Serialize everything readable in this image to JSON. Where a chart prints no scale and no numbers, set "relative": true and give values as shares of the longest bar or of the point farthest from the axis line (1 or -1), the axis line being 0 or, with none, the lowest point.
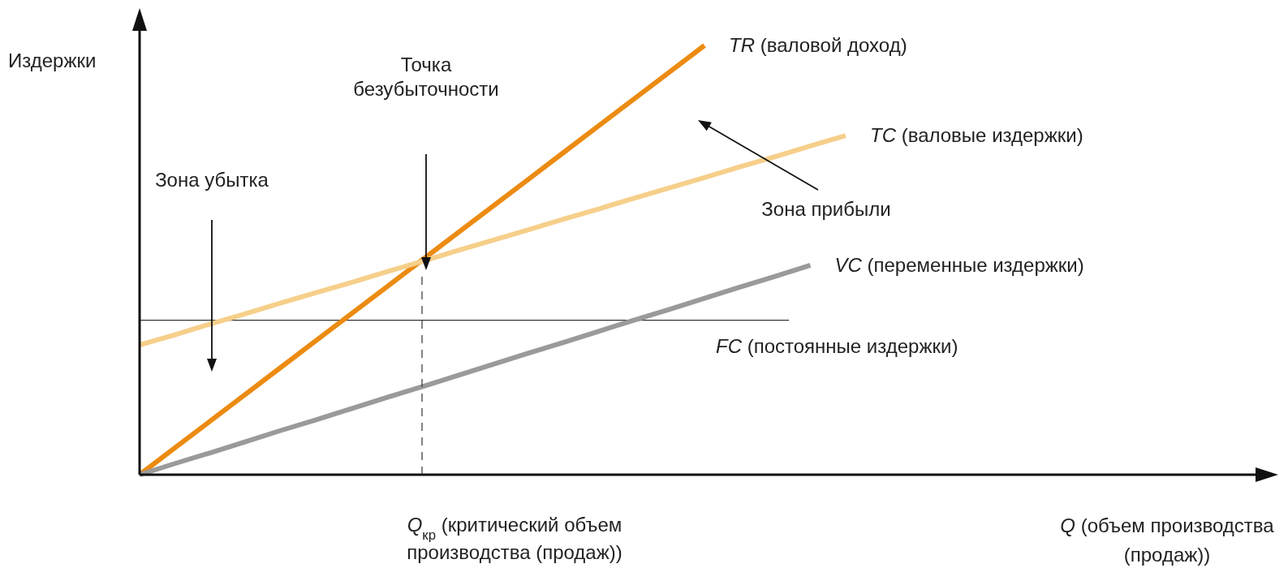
{
  "chart_data": {
    "type": "line",
    "relative": true,
    "ylabel": "Издержки",
    "xlabel": "Q (объем производства\n(продаж))",
    "categories": [
      null,
      null,
      null,
      null,
      null,
      null,
      null,
      null,
      null,
      null,
      null,
      null,
      null,
      null,
      null,
      null,
      null,
      null,
      null,
      null,
      null,
      null,
      null,
      null,
      null,
      null,
      null,
      null,
      null,
      null,
      null,
      null,
      null
    ],
    "series": [
      {
        "name": "TR (валовой доход)",
        "color": "#ec8b12",
        "values": [
          0,
          0.0625,
          0.125,
          0.1875,
          0.25,
          0.3125,
          0.375,
          0.4375,
          0.5,
          0.5625,
          0.625,
          0.6875,
          0.75,
          0.8125,
          0.875,
          0.9375,
          1,
          null,
          null,
          null,
          null,
          null,
          null,
          null,
          null,
          null,
          null,
          null,
          null,
          null,
          null,
          null,
          null
        ]
      },
      {
        "name": "TC (валовые издержки)",
        "color": "#f6cf8a",
        "values": [
          0.302,
          0.326,
          0.351,
          0.375,
          0.4,
          0.424,
          0.448,
          0.473,
          0.497,
          0.522,
          0.546,
          0.57,
          0.595,
          0.619,
          0.644,
          0.668,
          0.692,
          0.717,
          0.741,
          0.766,
          0.79,
          null,
          null,
          null,
          null,
          null,
          null,
          null,
          null,
          null,
          null,
          null,
          null
        ]
      },
      {
        "name": "VC (переменные издержки)",
        "color": "#9a9a9a",
        "values": [
          0,
          0.026,
          0.051,
          0.077,
          0.103,
          0.128,
          0.154,
          0.18,
          0.205,
          0.231,
          0.257,
          0.283,
          0.308,
          0.334,
          0.36,
          0.385,
          0.411,
          0.437,
          0.462,
          0.488,
          null,
          null,
          null,
          null,
          null,
          null,
          null,
          null,
          null,
          null,
          null,
          null,
          null
        ]
      }
    ],
    "ref_lines": [
      {
        "axis": "y",
        "value": 0.36,
        "label": "FC (постоянные издержки)",
        "color": "#333333",
        "line_style": "solid"
      }
    ],
    "annotations": [
      "Зона убытка",
      "Точка\nбезубыточности",
      "Зона прибыли",
      "Q$_{кр}$ (критический объем\nпроизводства (продаж))"
    ]
  }
}
